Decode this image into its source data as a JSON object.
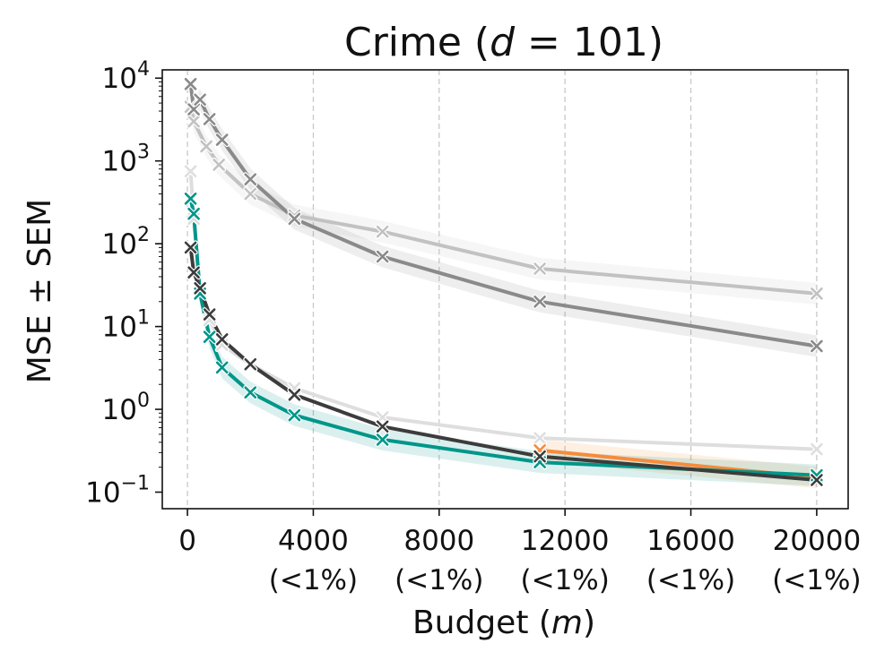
{
  "chart_data": {
    "type": "line",
    "title_prefix": "Crime (",
    "title_var": "d",
    "title_suffix": " = 101)",
    "xlabel_prefix": "Budget (",
    "xlabel_var": "m",
    "xlabel_suffix": ")",
    "ylabel": "MSE ± SEM",
    "xscale": "linear",
    "yscale": "log",
    "xlim": [
      -800,
      21000
    ],
    "ylim_log10": [
      -1.2,
      4.1
    ],
    "grid": "x-dashed",
    "x_ticks": [
      {
        "value": 0,
        "label": "0",
        "sublabel": ""
      },
      {
        "value": 4000,
        "label": "4000",
        "sublabel": "(<1%)"
      },
      {
        "value": 8000,
        "label": "8000",
        "sublabel": "(<1%)"
      },
      {
        "value": 12000,
        "label": "12000",
        "sublabel": "(<1%)"
      },
      {
        "value": 16000,
        "label": "16000",
        "sublabel": "(<1%)"
      },
      {
        "value": 20000,
        "label": "20000",
        "sublabel": "(<1%)"
      }
    ],
    "y_ticks": [
      {
        "value": 0.1,
        "base": "10",
        "exp": "−1"
      },
      {
        "value": 1,
        "base": "10",
        "exp": "0"
      },
      {
        "value": 10,
        "base": "10",
        "exp": "1"
      },
      {
        "value": 100,
        "base": "10",
        "exp": "2"
      },
      {
        "value": 1000,
        "base": "10",
        "exp": "3"
      },
      {
        "value": 10000,
        "base": "10",
        "exp": "4"
      }
    ],
    "series": [
      {
        "color": "#c2c2c2",
        "band": true,
        "x": [
          100,
          200,
          600,
          1000,
          2000,
          3400,
          6200,
          11200,
          20000
        ],
        "y": [
          4500,
          3000,
          1500,
          900,
          400,
          220,
          140,
          50,
          25
        ]
      },
      {
        "color": "#8a8a8a",
        "band": true,
        "x": [
          100,
          200,
          400,
          700,
          1100,
          2000,
          3400,
          6200,
          11200,
          20000
        ],
        "y": [
          8500,
          4200,
          5500,
          3200,
          1800,
          600,
          200,
          70,
          20,
          5.8
        ]
      },
      {
        "color": "#dedede",
        "band": false,
        "x": [
          100,
          200,
          400,
          700,
          1100,
          2000,
          3400,
          6200,
          11200,
          20000
        ],
        "y": [
          750,
          200,
          28,
          12,
          6,
          3.5,
          1.8,
          0.8,
          0.45,
          0.33
        ]
      },
      {
        "color": "#f58c3c",
        "band": true,
        "x": [
          11200,
          20000
        ],
        "y": [
          0.32,
          0.15
        ]
      },
      {
        "color": "#00968a",
        "band": true,
        "x": [
          100,
          200,
          400,
          700,
          1100,
          2000,
          3400,
          6200,
          11200,
          20000
        ],
        "y": [
          350,
          230,
          25,
          7.5,
          3.2,
          1.6,
          0.85,
          0.43,
          0.23,
          0.16
        ]
      },
      {
        "color": "#3c3c3c",
        "band": false,
        "x": [
          100,
          200,
          400,
          700,
          1100,
          2000,
          3400,
          6200,
          11200,
          20000
        ],
        "y": [
          90,
          45,
          29,
          14,
          7,
          3.5,
          1.5,
          0.62,
          0.27,
          0.14
        ]
      }
    ]
  }
}
